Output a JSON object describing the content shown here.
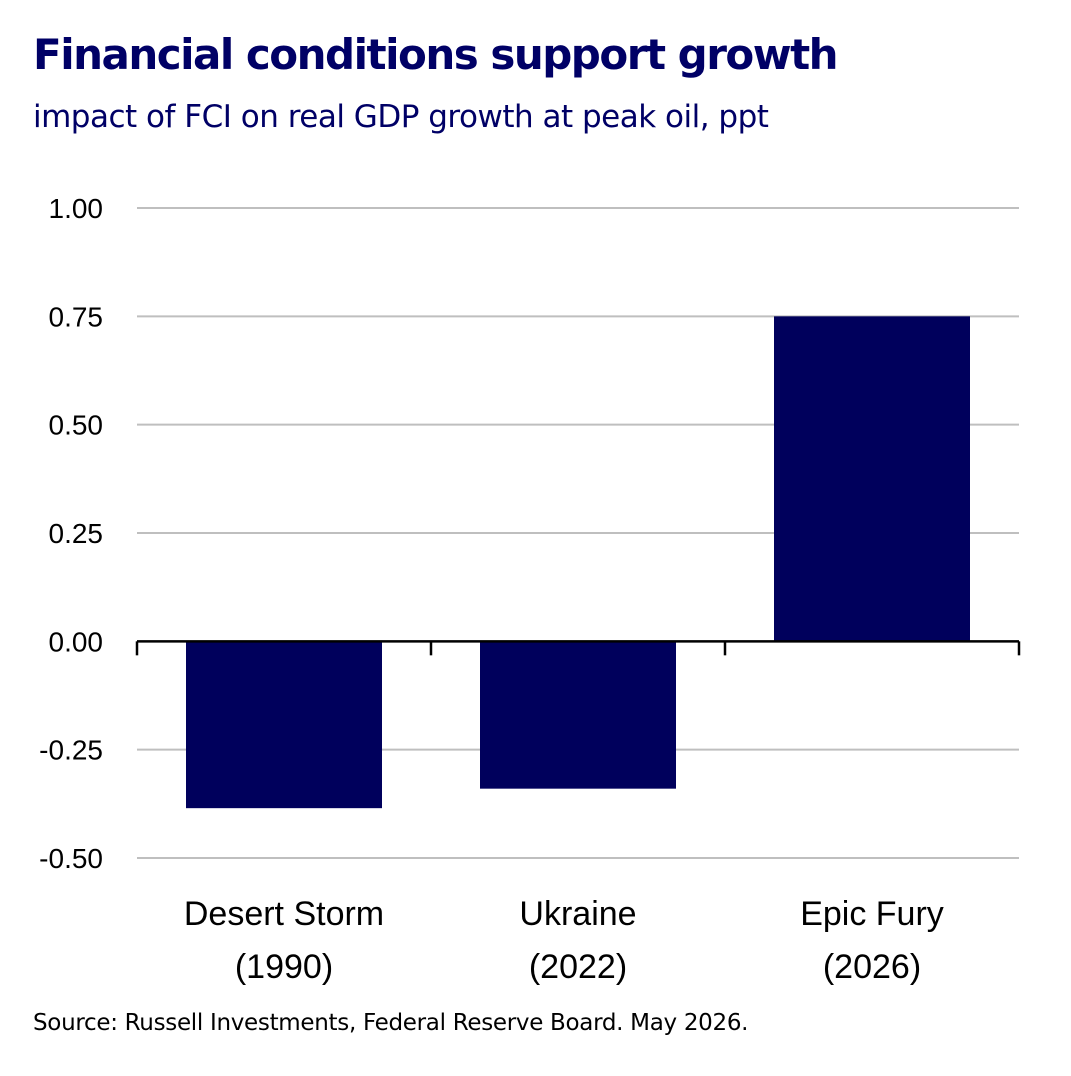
{
  "header": {
    "title": "Financial conditions support growth",
    "subtitle": "impact of FCI on real GDP growth at peak oil, ppt"
  },
  "footer": {
    "source": "Source: Russell Investments, Federal Reserve Board. May 2026."
  },
  "colors": {
    "bar": "#00005C",
    "title": "#000066",
    "grid": "#BFBFBF",
    "axis": "#000000"
  },
  "chart_data": {
    "type": "bar",
    "title": "Financial conditions support growth",
    "subtitle": "impact of FCI on real GDP growth at peak oil, ppt",
    "categories": [
      [
        "Desert Storm",
        "(1990)"
      ],
      [
        "Ukraine",
        "(2022)"
      ],
      [
        "Epic Fury",
        "(2026)"
      ]
    ],
    "values": [
      -0.385,
      -0.34,
      0.75
    ],
    "ylim": [
      -0.5,
      1.0
    ],
    "yticks": [
      1.0,
      0.75,
      0.5,
      0.25,
      0.0,
      -0.25,
      -0.5
    ],
    "ytick_labels": [
      "1.00",
      "0.75",
      "0.50",
      "0.25",
      "0.00",
      "-0.25",
      "-0.50"
    ],
    "xlabel": "",
    "ylabel": "",
    "grid": true,
    "legend": "none"
  }
}
